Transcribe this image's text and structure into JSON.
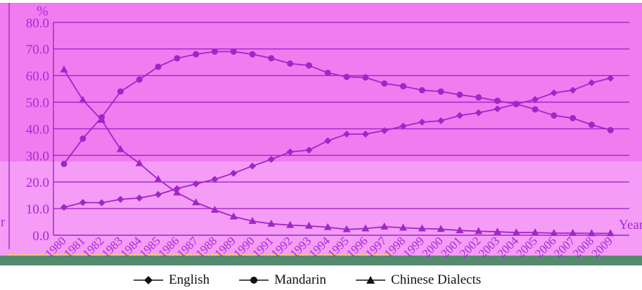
{
  "chart_data": {
    "type": "line",
    "y_unit": "%",
    "x_unit": "Year",
    "left_edge_glyph": "r",
    "ylim": [
      0,
      80
    ],
    "yticks": [
      "0.0",
      "10.0",
      "20.0",
      "30.0",
      "40.0",
      "50.0",
      "60.0",
      "70.0",
      "80.0"
    ],
    "categories": [
      "1980",
      "1981",
      "1982",
      "1983",
      "1984",
      "1985",
      "1986",
      "1987",
      "1988",
      "1989",
      "1990",
      "1991",
      "1992",
      "1993",
      "1994",
      "1995",
      "1996",
      "1997",
      "1998",
      "1999",
      "2000",
      "2001",
      "2002",
      "2003",
      "2004",
      "2005",
      "2006",
      "2007",
      "2008",
      "2009"
    ],
    "grid": true,
    "legend_position": "bottom",
    "series": [
      {
        "name": "English",
        "marker": "diamond",
        "values": [
          10.5,
          12.3,
          12.2,
          13.5,
          14.0,
          15.3,
          17.5,
          19.3,
          21.0,
          23.3,
          26.0,
          28.5,
          31.3,
          32.0,
          35.5,
          38.0,
          38.0,
          39.3,
          41.0,
          42.5,
          43.0,
          45.0,
          46.0,
          47.5,
          49.3,
          51.0,
          53.5,
          54.5,
          57.3,
          59.0
        ]
      },
      {
        "name": "Mandarin",
        "marker": "circle",
        "values": [
          26.8,
          36.3,
          44.3,
          54.0,
          58.5,
          63.3,
          66.5,
          68.0,
          69.0,
          69.0,
          68.0,
          66.5,
          64.5,
          63.8,
          61.0,
          59.5,
          59.3,
          57.0,
          56.0,
          54.5,
          54.0,
          52.8,
          51.8,
          50.5,
          49.3,
          47.3,
          45.0,
          44.0,
          41.5,
          39.5
        ]
      },
      {
        "name": "Chinese Dialects",
        "marker": "triangle",
        "values": [
          62.2,
          50.8,
          43.3,
          32.3,
          27.0,
          21.0,
          16.0,
          12.3,
          9.5,
          7.0,
          5.3,
          4.3,
          3.8,
          3.5,
          3.0,
          2.2,
          2.5,
          3.2,
          2.8,
          2.5,
          2.3,
          1.8,
          1.5,
          1.3,
          1.0,
          1.0,
          0.8,
          0.8,
          0.7,
          0.7
        ]
      }
    ]
  },
  "colors": {
    "plot_top": "#f07cf0",
    "plot_bottom": "#f49cf6",
    "line": "#a026c8",
    "axis_text": "#a52ad8",
    "bottom_band": "#558a6f",
    "dashed_baseline": "#e8e030",
    "legend_text": "#111111"
  }
}
